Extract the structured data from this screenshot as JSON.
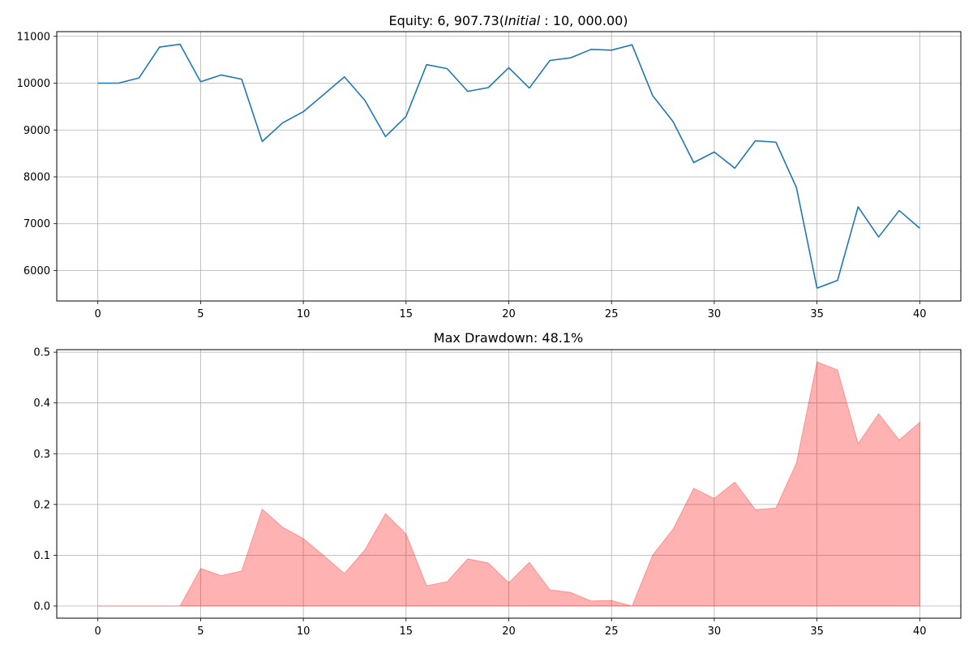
{
  "chart_data": [
    {
      "type": "line",
      "title_parts": [
        {
          "text": "Equity: ",
          "italic": false
        },
        {
          "text": "6, 907.73(",
          "italic": false
        },
        {
          "text": "Initial",
          "italic": true
        },
        {
          "text": " : 10, 000.00)",
          "italic": false
        }
      ],
      "x": [
        0,
        1,
        2,
        3,
        4,
        5,
        6,
        7,
        8,
        9,
        10,
        11,
        12,
        13,
        14,
        15,
        16,
        17,
        18,
        19,
        20,
        21,
        22,
        23,
        24,
        25,
        26,
        27,
        28,
        29,
        30,
        31,
        32,
        33,
        34,
        35,
        36,
        37,
        38,
        39,
        40
      ],
      "series": [
        {
          "values": [
            10000,
            10000,
            10110,
            10770,
            10830,
            10030,
            10175,
            10085,
            8755,
            9155,
            9390,
            9760,
            10135,
            9630,
            8860,
            9290,
            10395,
            10310,
            9825,
            9905,
            10330,
            9895,
            10485,
            10540,
            10720,
            10705,
            10820,
            9735,
            9175,
            8305,
            8530,
            8185,
            8770,
            8740,
            7770,
            5625,
            5790,
            7360,
            6715,
            7280,
            6905
          ],
          "color": "#1f77b4"
        }
      ],
      "xlim": [
        -2,
        42
      ],
      "ylim": [
        5350,
        11100
      ],
      "xticks": [
        0,
        5,
        10,
        15,
        20,
        25,
        30,
        35,
        40
      ],
      "yticks": [
        6000,
        7000,
        8000,
        9000,
        10000,
        11000
      ],
      "grid": true
    },
    {
      "type": "area",
      "title": "Max Drawdown: 48.1%",
      "x": [
        0,
        1,
        2,
        3,
        4,
        5,
        6,
        7,
        8,
        9,
        10,
        11,
        12,
        13,
        14,
        15,
        16,
        17,
        18,
        19,
        20,
        21,
        22,
        23,
        24,
        25,
        26,
        27,
        28,
        29,
        30,
        31,
        32,
        33,
        34,
        35,
        36,
        37,
        38,
        39,
        40
      ],
      "series": [
        {
          "values": [
            0,
            0,
            0,
            0,
            0,
            0.074,
            0.06,
            0.069,
            0.191,
            0.155,
            0.133,
            0.099,
            0.064,
            0.111,
            0.182,
            0.142,
            0.04,
            0.048,
            0.093,
            0.085,
            0.046,
            0.086,
            0.032,
            0.027,
            0.01,
            0.011,
            0,
            0.1,
            0.152,
            0.232,
            0.212,
            0.244,
            0.19,
            0.193,
            0.282,
            0.481,
            0.465,
            0.32,
            0.379,
            0.327,
            0.362
          ],
          "color": "#ff0000",
          "alpha": 0.3
        }
      ],
      "xlim": [
        -2,
        42
      ],
      "ylim": [
        -0.024,
        0.505
      ],
      "xticks": [
        0,
        5,
        10,
        15,
        20,
        25,
        30,
        35,
        40
      ],
      "yticks": [
        0.0,
        0.1,
        0.2,
        0.3,
        0.4,
        0.5
      ],
      "ytick_labels": [
        "0.0",
        "0.1",
        "0.2",
        "0.3",
        "0.4",
        "0.5"
      ],
      "grid": true
    }
  ]
}
